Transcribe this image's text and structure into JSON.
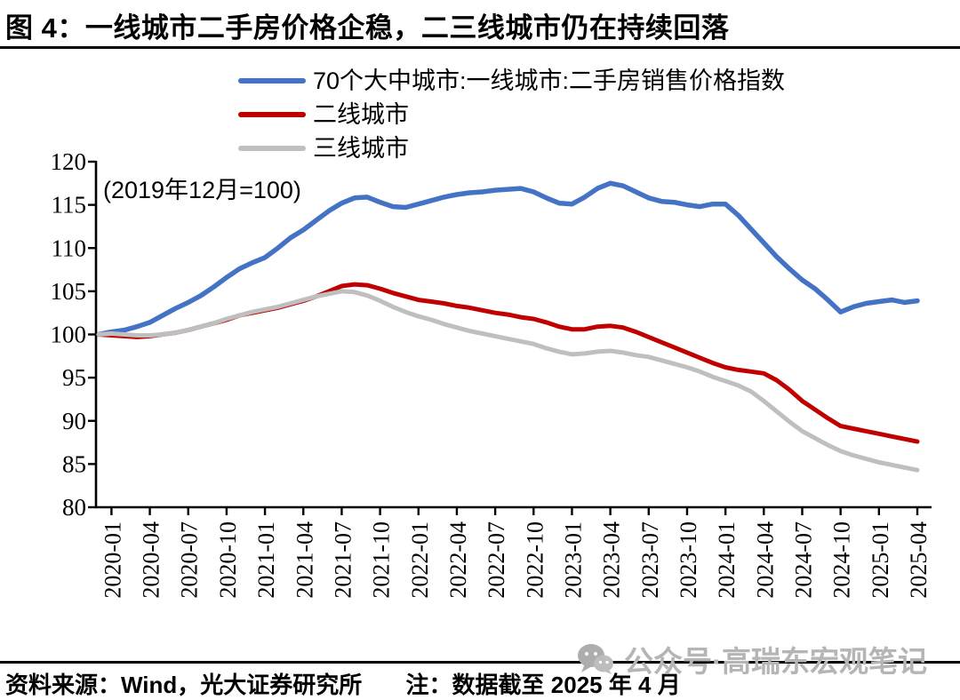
{
  "header": {
    "title": "图 4：一线城市二手房价格企稳，二三线城市仍在持续回落"
  },
  "legend": [
    {
      "label": "70个大中城市:一线城市:二手房销售价格指数",
      "color": "#4472C4"
    },
    {
      "label": "二线城市",
      "color": "#C00000"
    },
    {
      "label": "三线城市",
      "color": "#BFBFBF"
    }
  ],
  "annotation": "(2019年12月=100)",
  "footer": {
    "source": "资料来源：Wind，光大证券研究所",
    "note": "注：数据截至 2025 年 4 月"
  },
  "watermark": {
    "icon": "wechat-icon",
    "text": "公众号·高瑞东宏观笔记"
  },
  "chart_data": {
    "type": "line",
    "title": "图 4：一线城市二手房价格企稳，二三线城市仍在持续回落",
    "xlabel": "",
    "ylabel": "",
    "ylim": [
      80,
      120
    ],
    "yticks": [
      80,
      85,
      90,
      95,
      100,
      105,
      110,
      115,
      120
    ],
    "grid": false,
    "legend_position": "top",
    "base_note": "(2019年12月=100)",
    "x": [
      "2019-12",
      "2020-01",
      "2020-02",
      "2020-03",
      "2020-04",
      "2020-05",
      "2020-06",
      "2020-07",
      "2020-08",
      "2020-09",
      "2020-10",
      "2020-11",
      "2020-12",
      "2021-01",
      "2021-02",
      "2021-03",
      "2021-04",
      "2021-05",
      "2021-06",
      "2021-07",
      "2021-08",
      "2021-09",
      "2021-10",
      "2021-11",
      "2021-12",
      "2022-01",
      "2022-02",
      "2022-03",
      "2022-04",
      "2022-05",
      "2022-06",
      "2022-07",
      "2022-08",
      "2022-09",
      "2022-10",
      "2022-11",
      "2022-12",
      "2023-01",
      "2023-02",
      "2023-03",
      "2023-04",
      "2023-05",
      "2023-06",
      "2023-07",
      "2023-08",
      "2023-09",
      "2023-10",
      "2023-11",
      "2023-12",
      "2024-01",
      "2024-02",
      "2024-03",
      "2024-04",
      "2024-05",
      "2024-06",
      "2024-07",
      "2024-08",
      "2024-09",
      "2024-10",
      "2024-11",
      "2024-12",
      "2025-01",
      "2025-02",
      "2025-03",
      "2025-04"
    ],
    "x_tick_labels": [
      "2020-01",
      "2020-04",
      "2020-07",
      "2020-10",
      "2021-01",
      "2021-04",
      "2021-07",
      "2021-10",
      "2022-01",
      "2022-04",
      "2022-07",
      "2022-10",
      "2023-01",
      "2023-04",
      "2023-07",
      "2023-10",
      "2024-01",
      "2024-04",
      "2024-07",
      "2024-10",
      "2025-01",
      "2025-04"
    ],
    "series": [
      {
        "name": "70个大中城市:一线城市:二手房销售价格指数",
        "color": "#4472C4",
        "width": 5.5,
        "values": [
          100.0,
          100.3,
          100.5,
          100.9,
          101.4,
          102.2,
          103.0,
          103.7,
          104.5,
          105.5,
          106.6,
          107.6,
          108.3,
          108.9,
          110.0,
          111.2,
          112.1,
          113.2,
          114.3,
          115.2,
          115.8,
          115.9,
          115.3,
          114.8,
          114.7,
          115.1,
          115.5,
          115.9,
          116.2,
          116.4,
          116.5,
          116.7,
          116.8,
          116.9,
          116.5,
          115.8,
          115.2,
          115.1,
          115.9,
          116.9,
          117.5,
          117.2,
          116.5,
          115.8,
          115.4,
          115.3,
          115.0,
          114.8,
          115.1,
          115.1,
          113.8,
          112.2,
          110.6,
          109.0,
          107.6,
          106.3,
          105.3,
          104.0,
          102.6,
          103.2,
          103.6,
          103.8,
          104.0,
          103.7,
          103.9
        ]
      },
      {
        "name": "二线城市",
        "color": "#C00000",
        "width": 5,
        "values": [
          100.0,
          99.9,
          99.8,
          99.7,
          99.8,
          100.0,
          100.2,
          100.5,
          100.9,
          101.3,
          101.7,
          102.2,
          102.5,
          102.8,
          103.1,
          103.5,
          103.9,
          104.4,
          105.0,
          105.6,
          105.8,
          105.7,
          105.3,
          104.8,
          104.4,
          104.0,
          103.8,
          103.6,
          103.3,
          103.1,
          102.8,
          102.5,
          102.3,
          102.0,
          101.8,
          101.4,
          100.9,
          100.6,
          100.6,
          100.9,
          101.0,
          100.8,
          100.3,
          99.7,
          99.1,
          98.5,
          97.9,
          97.3,
          96.7,
          96.2,
          95.9,
          95.7,
          95.5,
          94.7,
          93.6,
          92.3,
          91.3,
          90.3,
          89.4,
          89.1,
          88.8,
          88.5,
          88.2,
          87.9,
          87.6
        ]
      },
      {
        "name": "三线城市",
        "color": "#BFBFBF",
        "width": 5,
        "values": [
          100.0,
          100.1,
          100.0,
          99.9,
          99.9,
          100.0,
          100.2,
          100.5,
          100.9,
          101.3,
          101.8,
          102.2,
          102.6,
          102.9,
          103.2,
          103.6,
          104.0,
          104.4,
          104.7,
          105.0,
          104.9,
          104.5,
          103.9,
          103.2,
          102.6,
          102.1,
          101.7,
          101.2,
          100.8,
          100.4,
          100.1,
          99.8,
          99.5,
          99.2,
          98.9,
          98.4,
          98.0,
          97.7,
          97.8,
          98.0,
          98.1,
          97.9,
          97.6,
          97.4,
          97.0,
          96.6,
          96.2,
          95.7,
          95.1,
          94.6,
          94.1,
          93.4,
          92.3,
          91.1,
          89.9,
          88.8,
          88.0,
          87.2,
          86.5,
          86.0,
          85.6,
          85.2,
          84.9,
          84.6,
          84.3
        ]
      }
    ]
  }
}
